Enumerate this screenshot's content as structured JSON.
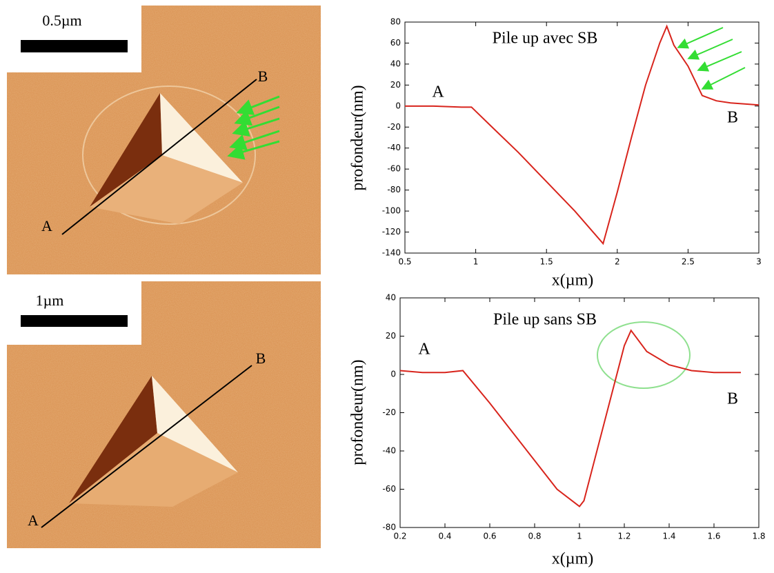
{
  "images": [
    {
      "scale_label": "0.5µm",
      "start_label": "A",
      "end_label": "B"
    },
    {
      "scale_label": "1µm",
      "start_label": "A",
      "end_label": "B"
    }
  ],
  "chart_data": [
    {
      "type": "line",
      "title": "Pile up avec SB",
      "x_label": "x(µm)",
      "y_label": "profondeur(nm)",
      "annotations": [
        "A",
        "B"
      ],
      "color": "#d8241c",
      "x": [
        0.5,
        0.7,
        0.9,
        0.97,
        1.1,
        1.3,
        1.5,
        1.7,
        1.9,
        2.0,
        2.1,
        2.2,
        2.3,
        2.35,
        2.4,
        2.5,
        2.6,
        2.7,
        2.8,
        2.9,
        3.0
      ],
      "values": [
        0,
        0,
        -1,
        -1,
        -18,
        -44,
        -72,
        -100,
        -131,
        -82,
        -30,
        20,
        60,
        76,
        58,
        38,
        10,
        5,
        3,
        2,
        1
      ],
      "xlim": [
        0.5,
        3
      ],
      "xticks": [
        0.5,
        1,
        1.5,
        2,
        2.5,
        3
      ],
      "ylim": [
        -140,
        80
      ],
      "yticks": [
        -140,
        -120,
        -100,
        -80,
        -60,
        -40,
        -20,
        0,
        20,
        40,
        60,
        80
      ]
    },
    {
      "type": "line",
      "title": "Pile up sans SB",
      "x_label": "x(µm)",
      "y_label": "profondeur(nm)",
      "annotations": [
        "A",
        "B"
      ],
      "color": "#d8241c",
      "x": [
        0.2,
        0.3,
        0.4,
        0.48,
        0.6,
        0.7,
        0.8,
        0.9,
        1.0,
        1.02,
        1.1,
        1.2,
        1.23,
        1.3,
        1.4,
        1.5,
        1.6,
        1.72
      ],
      "values": [
        2,
        1,
        1,
        2,
        -15,
        -30,
        -45,
        -60,
        -69,
        -66,
        -30,
        15,
        23,
        12,
        5,
        2,
        1,
        1
      ],
      "xlim": [
        0.2,
        1.8
      ],
      "xticks": [
        0.2,
        0.4,
        0.6,
        0.8,
        1,
        1.2,
        1.4,
        1.6,
        1.8
      ],
      "ylim": [
        -80,
        40
      ],
      "yticks": [
        -80,
        -60,
        -40,
        -20,
        0,
        20,
        40
      ]
    }
  ]
}
